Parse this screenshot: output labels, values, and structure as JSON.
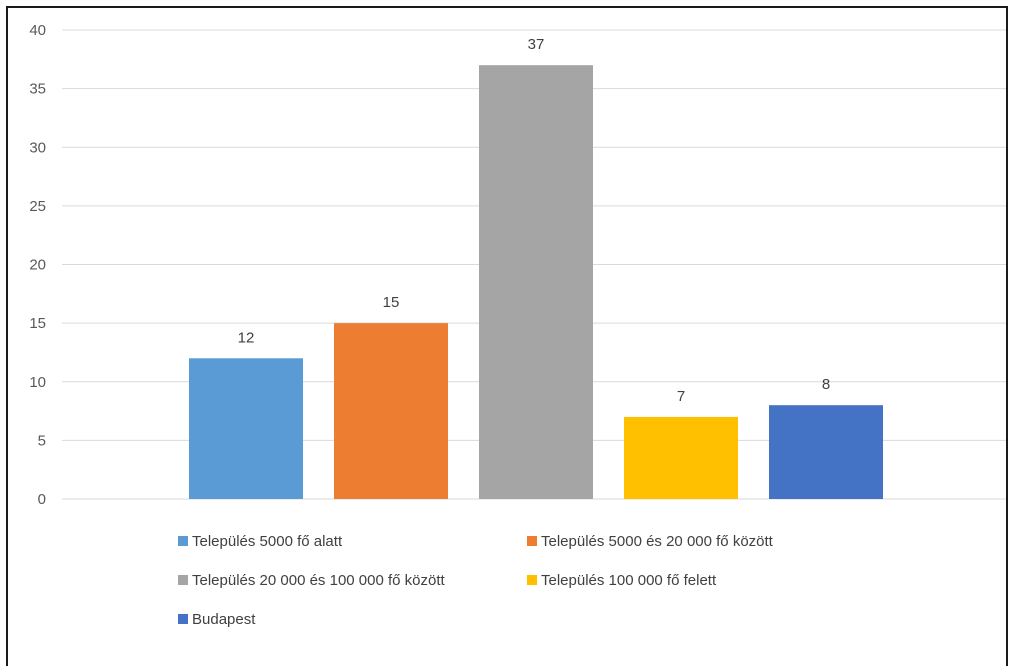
{
  "chart_data": {
    "type": "bar",
    "categories": [
      "Település 5000 fő alatt",
      "Település 5000 és 20 000 fő között",
      "Település 20 000 és 100 000 fő között",
      "Település 100 000 fő felett",
      "Budapest"
    ],
    "series": [
      {
        "values": [
          12,
          15,
          37,
          7,
          8
        ]
      }
    ],
    "colors": [
      "#5b9bd5",
      "#ed7d31",
      "#a5a5a5",
      "#ffc000",
      "#4472c4"
    ],
    "data_labels": [
      "12",
      "15",
      "37",
      "7",
      "8"
    ],
    "y_ticks": [
      "0",
      "5",
      "10",
      "15",
      "20",
      "25",
      "30",
      "35",
      "40"
    ],
    "ylim": [
      0,
      40
    ],
    "grid": true,
    "legend_position": "bottom",
    "legend": [
      {
        "label": "Település 5000 fő alatt",
        "color": "#5b9bd5"
      },
      {
        "label": "Település 5000 és 20 000 fő között",
        "color": "#ed7d31"
      },
      {
        "label": "Település 20 000 és 100 000 fő között",
        "color": "#a5a5a5"
      },
      {
        "label": "Település 100 000 fő felett",
        "color": "#ffc000"
      },
      {
        "label": "Budapest",
        "color": "#4472c4"
      }
    ]
  }
}
